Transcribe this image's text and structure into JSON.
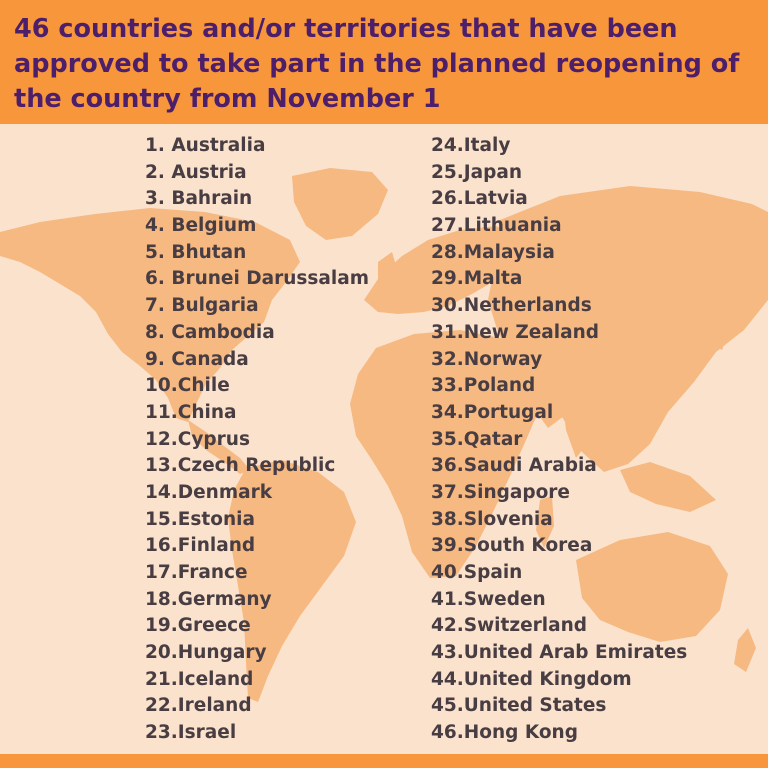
{
  "title": "46 countries and/or territories that have been approved to take part in the planned reopening of the country from November 1",
  "colors": {
    "header_bg": "#f7963a",
    "title_text": "#4d1f6b",
    "background": "#fbe2cc",
    "map_fill": "#f6b982",
    "list_text": "#473d43"
  },
  "countries_left": [
    "1. Australia",
    "2. Austria",
    "3. Bahrain",
    "4. Belgium",
    "5. Bhutan",
    "6. Brunei Darussalam",
    "7. Bulgaria",
    "8. Cambodia",
    "9. Canada",
    "10.Chile",
    "11.China",
    "12.Cyprus",
    "13.Czech Republic",
    "14.Denmark",
    "15.Estonia",
    "16.Finland",
    "17.France",
    "18.Germany",
    "19.Greece",
    "20.Hungary",
    "21.Iceland",
    "22.Ireland",
    "23.Israel"
  ],
  "countries_right": [
    "24.Italy",
    "25.Japan",
    "26.Latvia",
    "27.Lithuania",
    "28.Malaysia",
    "29.Malta",
    "30.Netherlands",
    "31.New Zealand",
    "32.Norway",
    "33.Poland",
    "34.Portugal",
    "35.Qatar",
    "36.Saudi Arabia",
    "37.Singapore",
    "38.Slovenia",
    "39.South Korea",
    "40.Spain",
    "41.Sweden",
    "42.Switzerland",
    "43.United Arab Emirates",
    "44.United Kingdom",
    "45.United States",
    "46.Hong Kong"
  ]
}
